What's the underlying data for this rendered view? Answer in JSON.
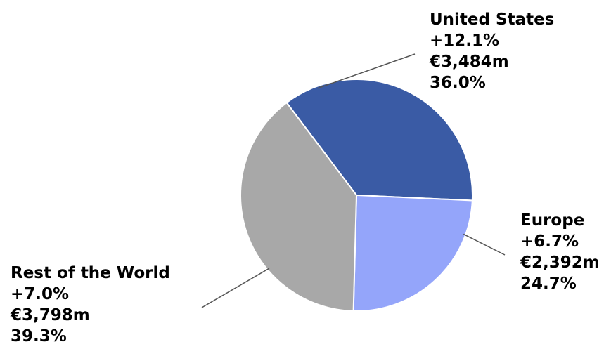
{
  "chart_data": {
    "type": "pie",
    "title": "",
    "slices": [
      {
        "name": "United States",
        "growth": "+12.1%",
        "amount": "€3,484m",
        "share": "36.0%",
        "value": 36.0,
        "color": "#3A5BA5"
      },
      {
        "name": "Europe",
        "growth": "+6.7%",
        "amount": "€2,392m",
        "share": "24.7%",
        "value": 24.7,
        "color": "#94A5FA"
      },
      {
        "name": "Rest of the World",
        "growth": "+7.0%",
        "amount": "€3,798m",
        "share": "39.3%",
        "value": 39.3,
        "color": "#A8A8A8"
      }
    ],
    "slice_border_color": "#FFFFFF",
    "leader_line_color": "#555555"
  }
}
